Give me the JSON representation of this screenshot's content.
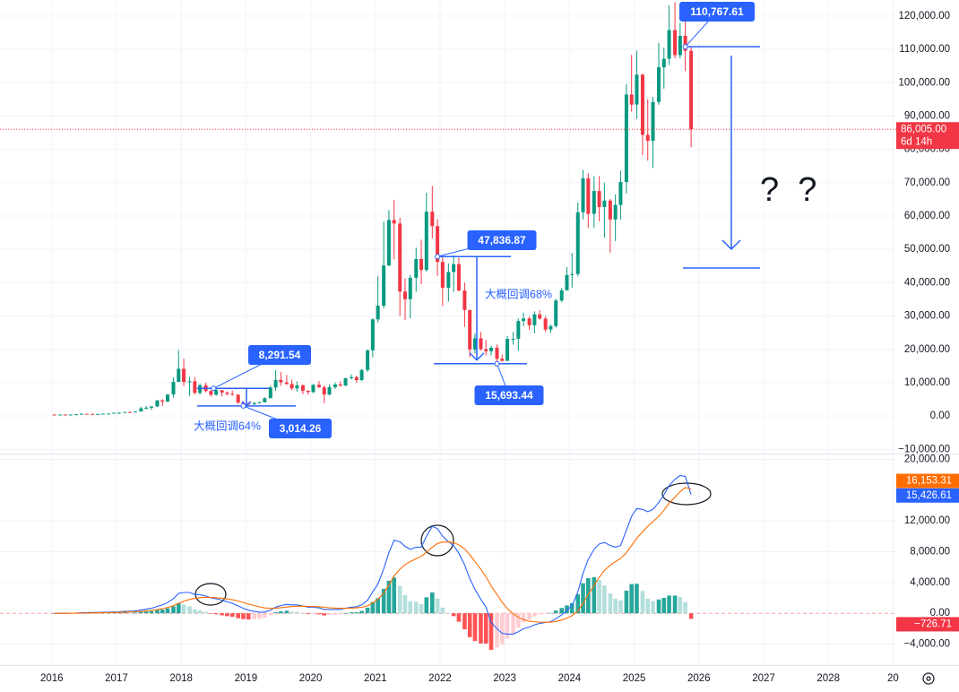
{
  "chart_data": {
    "type": "candlestick",
    "x": [
      2016.04,
      2016.13,
      2016.21,
      2016.29,
      2016.38,
      2016.46,
      2016.54,
      2016.63,
      2016.71,
      2016.79,
      2016.88,
      2016.96,
      2017.04,
      2017.13,
      2017.21,
      2017.29,
      2017.38,
      2017.46,
      2017.54,
      2017.63,
      2017.71,
      2017.79,
      2017.88,
      2017.96,
      2018.04,
      2018.13,
      2018.21,
      2018.29,
      2018.38,
      2018.46,
      2018.54,
      2018.63,
      2018.71,
      2018.79,
      2018.88,
      2018.96,
      2019.04,
      2019.13,
      2019.21,
      2019.29,
      2019.38,
      2019.46,
      2019.54,
      2019.63,
      2019.71,
      2019.79,
      2019.88,
      2019.96,
      2020.04,
      2020.13,
      2020.21,
      2020.29,
      2020.38,
      2020.46,
      2020.54,
      2020.63,
      2020.71,
      2020.79,
      2020.88,
      2020.96,
      2021.04,
      2021.13,
      2021.21,
      2021.29,
      2021.38,
      2021.46,
      2021.54,
      2021.63,
      2021.71,
      2021.79,
      2021.88,
      2021.96,
      2022.04,
      2022.13,
      2022.21,
      2022.29,
      2022.38,
      2022.46,
      2022.54,
      2022.63,
      2022.71,
      2022.79,
      2022.88,
      2022.96,
      2023.04,
      2023.13,
      2023.21,
      2023.29,
      2023.38,
      2023.46,
      2023.54,
      2023.63,
      2023.71,
      2023.79,
      2023.88,
      2023.96,
      2024.04,
      2024.13,
      2024.21,
      2024.29,
      2024.38,
      2024.46,
      2024.54,
      2024.63,
      2024.71,
      2024.79,
      2024.88,
      2024.96,
      2025.04,
      2025.13,
      2025.21,
      2025.29,
      2025.38,
      2025.46,
      2025.54,
      2025.63,
      2025.71,
      2025.79,
      2025.88
    ],
    "open": [
      430,
      369,
      437,
      416,
      448,
      531,
      673,
      624,
      575,
      609,
      700,
      742,
      963,
      970,
      1190,
      1080,
      1350,
      2300,
      2480,
      2875,
      4700,
      4340,
      6470,
      10230,
      14160,
      10220,
      10400,
      6930,
      9240,
      7490,
      6390,
      7730,
      7030,
      6630,
      6370,
      4040,
      3740,
      3460,
      3850,
      4110,
      5320,
      8570,
      10820,
      10080,
      9600,
      8290,
      9200,
      7560,
      7190,
      9350,
      8600,
      6440,
      8660,
      9460,
      9140,
      11350,
      11660,
      10780,
      13800,
      19700,
      28990,
      33110,
      45140,
      58800,
      57750,
      37330,
      35040,
      41460,
      47100,
      43790,
      61300,
      56950,
      46220,
      38480,
      43190,
      45540,
      37640,
      31800,
      19940,
      23300,
      20050,
      19420,
      20490,
      17170,
      16540,
      23130,
      23150,
      28480,
      29250,
      27220,
      30480,
      29230,
      25940,
      26970,
      34640,
      37720,
      42280,
      42580,
      61130,
      71290,
      60640,
      67490,
      62680,
      64620,
      58970,
      63330,
      70220,
      96450,
      93430,
      102400,
      84350,
      82550,
      94200,
      104600,
      107170,
      115760,
      108270,
      114050,
      109560
    ],
    "high": [
      460,
      450,
      440,
      470,
      550,
      780,
      680,
      630,
      620,
      740,
      755,
      980,
      1160,
      1210,
      1300,
      1420,
      2760,
      3000,
      2920,
      4770,
      5000,
      6470,
      11500,
      19800,
      17200,
      11800,
      11700,
      9760,
      9990,
      7760,
      8500,
      7760,
      7400,
      7680,
      6560,
      4310,
      4100,
      4200,
      4300,
      5640,
      9070,
      13800,
      13200,
      12300,
      10900,
      10370,
      9500,
      7740,
      9590,
      10500,
      9200,
      9460,
      10080,
      10400,
      11450,
      12480,
      12060,
      14100,
      19950,
      29300,
      41950,
      58350,
      61800,
      64850,
      59500,
      41300,
      42300,
      50500,
      52900,
      67000,
      69000,
      59000,
      47990,
      45800,
      48200,
      47400,
      40000,
      31900,
      24700,
      25200,
      22800,
      21100,
      21480,
      18400,
      23950,
      25250,
      29200,
      31000,
      29800,
      31400,
      31800,
      30000,
      27500,
      35200,
      38400,
      44700,
      48900,
      64000,
      73800,
      72800,
      71900,
      72000,
      70000,
      65100,
      66500,
      73600,
      99600,
      108300,
      109600,
      102700,
      95000,
      95700,
      111900,
      110500,
      123200,
      124100,
      117900,
      124000,
      111000
    ],
    "low": [
      350,
      365,
      400,
      410,
      440,
      520,
      590,
      540,
      570,
      600,
      680,
      740,
      750,
      930,
      890,
      1060,
      1350,
      2000,
      1840,
      2700,
      2950,
      4150,
      5500,
      10700,
      9000,
      6000,
      6430,
      6430,
      7090,
      5800,
      6080,
      5880,
      6140,
      6110,
      3560,
      3150,
      3350,
      3400,
      3760,
      4060,
      5330,
      7500,
      9050,
      9300,
      7720,
      7300,
      6520,
      6430,
      6870,
      8470,
      3850,
      6160,
      8130,
      8830,
      8960,
      11000,
      10000,
      10400,
      13200,
      17600,
      28100,
      32300,
      45000,
      47000,
      30000,
      28800,
      29300,
      37300,
      39600,
      43300,
      53300,
      42000,
      33000,
      34300,
      37200,
      37400,
      26700,
      17600,
      18800,
      19600,
      18150,
      18150,
      15500,
      16300,
      16500,
      21400,
      19550,
      27000,
      25800,
      24800,
      28900,
      25200,
      24900,
      26500,
      34100,
      37600,
      38500,
      41900,
      59000,
      56500,
      56500,
      58400,
      53500,
      49000,
      52500,
      58900,
      66800,
      91300,
      89200,
      78200,
      76600,
      74400,
      93400,
      98200,
      105300,
      107300,
      107300,
      103500,
      80600
    ],
    "close": [
      369,
      437,
      416,
      448,
      531,
      673,
      624,
      575,
      609,
      700,
      742,
      963,
      970,
      1190,
      1080,
      1350,
      2300,
      2480,
      2875,
      4700,
      4340,
      6470,
      10230,
      14160,
      10220,
      10400,
      6930,
      9240,
      7490,
      6390,
      7730,
      7030,
      6630,
      6370,
      4040,
      3740,
      3460,
      3850,
      4110,
      5320,
      8570,
      10820,
      10080,
      9600,
      8290,
      9200,
      7560,
      7190,
      9350,
      8600,
      6440,
      8660,
      9460,
      9140,
      11350,
      11660,
      10780,
      13800,
      19700,
      28990,
      33110,
      45140,
      58800,
      57750,
      37330,
      35040,
      41460,
      47100,
      43790,
      61300,
      56950,
      46220,
      38480,
      43190,
      45540,
      37640,
      31800,
      19940,
      23300,
      20050,
      19420,
      20490,
      17170,
      16540,
      23130,
      23150,
      28480,
      29250,
      27220,
      30480,
      29230,
      25940,
      26970,
      34640,
      37720,
      42280,
      42580,
      61130,
      71290,
      60640,
      67490,
      62680,
      64620,
      58970,
      63330,
      70220,
      96450,
      93430,
      102400,
      84350,
      82550,
      94200,
      104600,
      107170,
      115760,
      108270,
      114050,
      109560,
      86005
    ],
    "up_color": "#089981",
    "down_color": "#f23645",
    "xlim": [
      2015.2,
      2029.05
    ],
    "xticks": [
      2016,
      2017,
      2018,
      2019,
      2020,
      2021,
      2022,
      2023,
      2024,
      2025,
      2026,
      2027,
      2028,
      {
        "value": 2029,
        "label": "20"
      }
    ],
    "ylim": [
      -11000,
      124800
    ],
    "yticks": [
      {
        "value": 120000,
        "label": "120,000.00"
      },
      {
        "value": 110000,
        "label": "110,000.00"
      },
      {
        "value": 100000,
        "label": "100,000.00"
      },
      {
        "value": 90000,
        "label": "90,000.00"
      },
      {
        "value": 80000,
        "label": "80,000.00"
      },
      {
        "value": 70000,
        "label": "70,000.00"
      },
      {
        "value": 60000,
        "label": "60,000.00"
      },
      {
        "value": 50000,
        "label": "50,000.00"
      },
      {
        "value": 40000,
        "label": "40,000.00"
      },
      {
        "value": 30000,
        "label": "30,000.00"
      },
      {
        "value": 20000,
        "label": "20,000.00"
      },
      {
        "value": 10000,
        "label": "10,000.00"
      },
      {
        "value": 0,
        "label": "0.00"
      },
      {
        "value": -10000,
        "label": "−10,000.00"
      }
    ],
    "grid": true,
    "last_price": {
      "value": 86005,
      "label": "86,005.00"
    },
    "countdown": "6d 14h",
    "annotations": [
      {
        "label": "110,767.61",
        "value": 110767.61,
        "x": 2025.79
      },
      {
        "label": "8,291.54",
        "value": 8291.54,
        "x": 2018.5
      },
      {
        "label": "3,014.26",
        "value": 3014.26,
        "x": 2018.96
      },
      {
        "label": "47,836.87",
        "value": 47836.87,
        "x": 2021.96
      },
      {
        "label": "15,693.44",
        "value": 15693.44,
        "x": 2022.88
      }
    ],
    "notes": [
      "大概回调64%",
      "大概回调68%",
      "?  ?"
    ],
    "macd": {
      "macd": [
        0,
        0,
        10,
        20,
        40,
        70,
        90,
        100,
        110,
        130,
        150,
        180,
        200,
        240,
        260,
        300,
        420,
        530,
        650,
        900,
        1080,
        1400,
        1900,
        2600,
        2700,
        2700,
        2450,
        2400,
        2250,
        2000,
        1900,
        1700,
        1500,
        1300,
        950,
        650,
        400,
        250,
        150,
        150,
        400,
        800,
        1000,
        1150,
        1100,
        1100,
        950,
        800,
        800,
        700,
        500,
        500,
        500,
        500,
        650,
        800,
        850,
        1100,
        1700,
        2800,
        3800,
        5800,
        7900,
        9500,
        9300,
        8700,
        8300,
        8600,
        8600,
        10000,
        11300,
        11000,
        10000,
        9300,
        8800,
        7800,
        6300,
        4500,
        3100,
        1800,
        800,
        -1200,
        -2000,
        -2600,
        -2700,
        -2700,
        -2400,
        -2000,
        -1800,
        -1500,
        -1300,
        -1200,
        -1100,
        -700,
        -200,
        400,
        1000,
        2800,
        5200,
        7000,
        8300,
        9000,
        9200,
        8800,
        8600,
        8800,
        10800,
        12600,
        13600,
        13500,
        13200,
        13500,
        14400,
        15400,
        16600,
        17400,
        17900,
        17800,
        15426.61
      ],
      "signal": [
        0,
        0,
        2,
        6,
        13,
        24,
        37,
        50,
        62,
        76,
        91,
        109,
        127,
        150,
        172,
        198,
        242,
        300,
        370,
        476,
        597,
        758,
        986,
        1309,
        1587,
        1810,
        1938,
        2030,
        2074,
        2059,
        2027,
        1962,
        1869,
        1755,
        1594,
        1405,
        1204,
        1013,
        840,
        702,
        642,
        673,
        738,
        820,
        876,
        921,
        927,
        901,
        881,
        845,
        776,
        721,
        677,
        641,
        643,
        674,
        709,
        787,
        970,
        1336,
        1829,
        2623,
        3678,
        4842,
        5734,
        6327,
        6722,
        7098,
        7398,
        7918,
        8595,
        9076,
        9261,
        9269,
        9175,
        8900,
        8380,
        7604,
        6703,
        5723,
        4738,
        3551,
        2440,
        1432,
        606,
        -55,
        -524,
        -819,
        -1015,
        -1112,
        -1150,
        -1160,
        -1148,
        -1058,
        -887,
        -629,
        -303,
        318,
        1294,
        2435,
        3608,
        4687,
        5589,
        6231,
        6705,
        7124,
        7859,
        8807,
        9766,
        10600,
        11300,
        11900,
        12600,
        13400,
        14300,
        15100,
        15800,
        16350,
        16153.31
      ],
      "histogram": [
        0,
        0,
        8,
        14,
        27,
        46,
        53,
        50,
        48,
        54,
        59,
        71,
        73,
        90,
        88,
        102,
        178,
        230,
        280,
        424,
        483,
        642,
        914,
        1291,
        1113,
        890,
        512,
        370,
        176,
        -59,
        -127,
        -262,
        -369,
        -455,
        -644,
        -755,
        -804,
        -763,
        -690,
        -552,
        -242,
        127,
        262,
        330,
        224,
        179,
        23,
        -101,
        -81,
        -145,
        -276,
        -221,
        -177,
        -141,
        7,
        126,
        141,
        313,
        730,
        1464,
        1971,
        3177,
        4222,
        4658,
        3566,
        2373,
        1578,
        1502,
        1202,
        2082,
        2705,
        1924,
        739,
        31,
        -375,
        -1100,
        -2080,
        -3104,
        -3603,
        -3923,
        -3938,
        -4751,
        -4440,
        -4032,
        -3306,
        -2645,
        -1876,
        -1181,
        -785,
        -388,
        -150,
        -40,
        48,
        358,
        687,
        1029,
        1303,
        2482,
        3906,
        4565,
        4692,
        4313,
        3611,
        2569,
        1895,
        1676,
        2941,
        3793,
        3834,
        2900,
        1900,
        1600,
        1800,
        2000,
        2300,
        2300,
        2100,
        1450,
        -726.71
      ],
      "macd_label": "15,426.61",
      "signal_label": "16,153.31",
      "histogram_label": "−726.71",
      "macd_color": "#2962ff",
      "signal_color": "#ff6d00",
      "hist_colors": [
        "#26a69a",
        "#b2dfdb",
        "#ff5252",
        "#ffcdd2"
      ],
      "ylim": [
        -6500,
        20640
      ],
      "yticks": [
        {
          "value": 20000,
          "label": "20,000.00"
        },
        {
          "value": 12000,
          "label": "12,000.00"
        },
        {
          "value": 8000,
          "label": "8,000.00"
        },
        {
          "value": 4000,
          "label": "4,000.00"
        },
        {
          "value": 0,
          "label": "0.00"
        },
        {
          "value": -4000,
          "label": "−4,000.00"
        }
      ]
    }
  }
}
